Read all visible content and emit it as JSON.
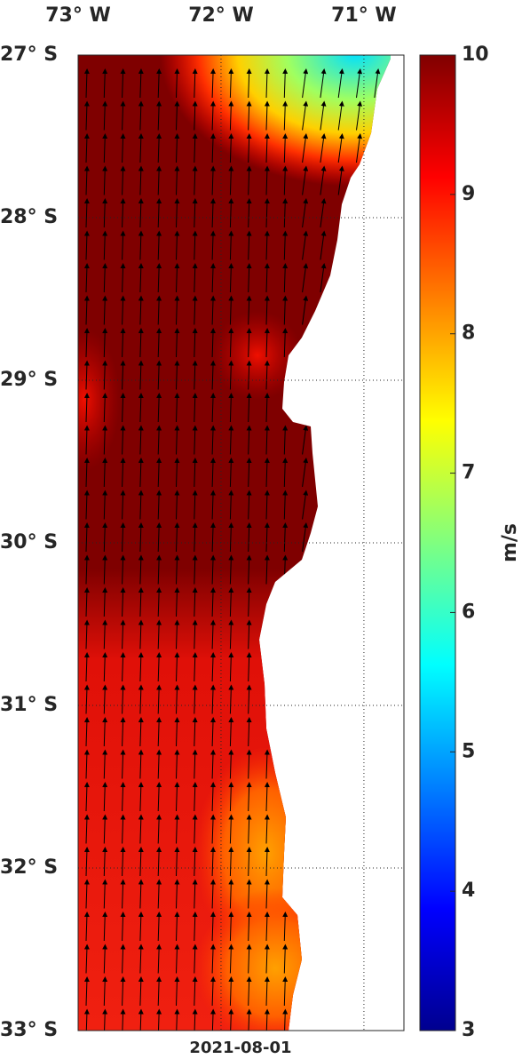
{
  "map": {
    "lon_ticks": [
      {
        "value": -73,
        "label": "73° W"
      },
      {
        "value": -72,
        "label": "72° W"
      },
      {
        "value": -71,
        "label": "71° W"
      }
    ],
    "lat_ticks": [
      {
        "value": -27,
        "label": "27° S"
      },
      {
        "value": -28,
        "label": "28° S"
      },
      {
        "value": -29,
        "label": "29° S"
      },
      {
        "value": -30,
        "label": "30° S"
      },
      {
        "value": -31,
        "label": "31° S"
      },
      {
        "value": -32,
        "label": "32° S"
      },
      {
        "value": -33,
        "label": "33° S"
      }
    ],
    "xlim": [
      -73,
      -70.72
    ],
    "ylim": [
      -33,
      -27
    ],
    "date": "2021-08-01"
  },
  "colorbar": {
    "label": "m/s",
    "lim": [
      3,
      10
    ],
    "ticks": [
      3,
      4,
      5,
      6,
      7,
      8,
      9,
      10
    ],
    "colormap": "jet"
  }
}
